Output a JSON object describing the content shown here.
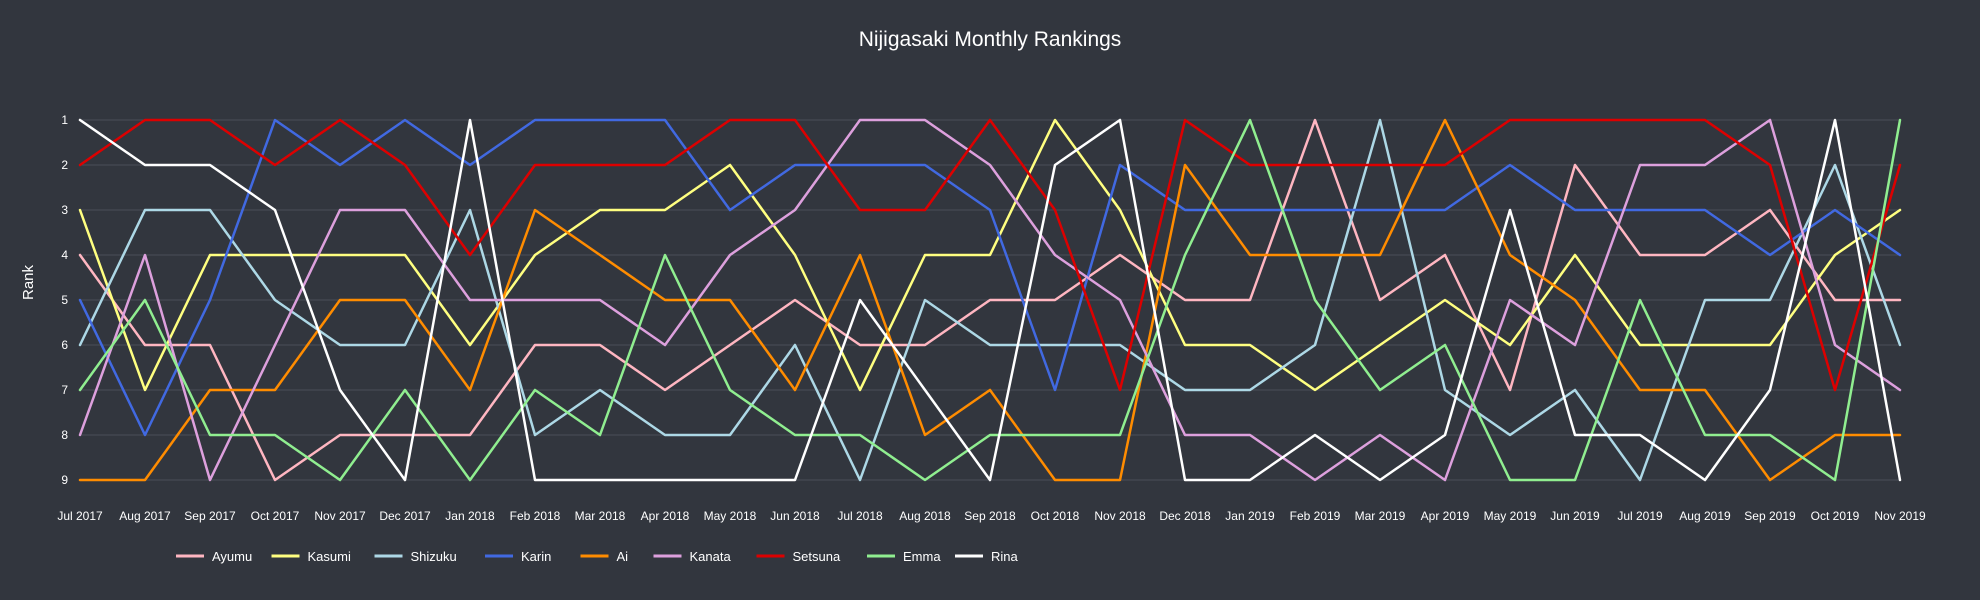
{
  "chart_data": {
    "type": "line",
    "title": "Nijigasaki Monthly Rankings",
    "xlabel": "",
    "ylabel": "Rank",
    "ylim": [
      9,
      1
    ],
    "y_inverted": true,
    "yticks": [
      1,
      2,
      3,
      4,
      5,
      6,
      7,
      8,
      9
    ],
    "grid": true,
    "legend_position": "bottom-left",
    "categories": [
      "Jul 2017",
      "Aug 2017",
      "Sep 2017",
      "Oct 2017",
      "Nov 2017",
      "Dec 2017",
      "Jan 2018",
      "Feb 2018",
      "Mar 2018",
      "Apr 2018",
      "May 2018",
      "Jun 2018",
      "Jul 2018",
      "Aug 2018",
      "Sep 2018",
      "Oct 2018",
      "Nov 2018",
      "Dec 2018",
      "Jan 2019",
      "Feb 2019",
      "Mar 2019",
      "Apr 2019",
      "May 2019",
      "Jun 2019",
      "Jul 2019",
      "Aug 2019",
      "Sep 2019",
      "Oct 2019",
      "Nov 2019"
    ],
    "series": [
      {
        "name": "Ayumu",
        "color": "#ffb6c1",
        "values": [
          4,
          6,
          6,
          9,
          8,
          8,
          8,
          6,
          6,
          7,
          6,
          5,
          6,
          6,
          5,
          5,
          4,
          5,
          5,
          1,
          5,
          4,
          7,
          2,
          4,
          4,
          3,
          5,
          5
        ]
      },
      {
        "name": "Kasumi",
        "color": "#ffff80",
        "values": [
          3,
          7,
          4,
          4,
          4,
          4,
          6,
          4,
          3,
          3,
          2,
          4,
          7,
          4,
          4,
          1,
          3,
          6,
          6,
          7,
          6,
          5,
          6,
          4,
          6,
          6,
          6,
          4,
          3
        ]
      },
      {
        "name": "Shizuku",
        "color": "#add8e6",
        "values": [
          6,
          3,
          3,
          5,
          6,
          6,
          3,
          8,
          7,
          8,
          8,
          6,
          9,
          5,
          6,
          6,
          6,
          7,
          7,
          6,
          1,
          7,
          8,
          7,
          9,
          5,
          5,
          2,
          6
        ]
      },
      {
        "name": "Karin",
        "color": "#4169e1",
        "values": [
          5,
          8,
          5,
          1,
          2,
          1,
          2,
          1,
          1,
          1,
          3,
          2,
          2,
          2,
          3,
          7,
          2,
          3,
          3,
          3,
          3,
          3,
          2,
          3,
          3,
          3,
          4,
          3,
          4
        ]
      },
      {
        "name": "Ai",
        "color": "#ff8c00",
        "values": [
          9,
          9,
          7,
          7,
          5,
          5,
          7,
          3,
          4,
          5,
          5,
          7,
          4,
          8,
          7,
          9,
          9,
          2,
          4,
          4,
          4,
          1,
          4,
          5,
          7,
          7,
          9,
          8,
          8
        ]
      },
      {
        "name": "Kanata",
        "color": "#dda0dd",
        "values": [
          8,
          4,
          9,
          6,
          3,
          3,
          5,
          5,
          5,
          6,
          4,
          3,
          1,
          1,
          2,
          4,
          5,
          8,
          8,
          9,
          8,
          9,
          5,
          6,
          2,
          2,
          1,
          6,
          7
        ]
      },
      {
        "name": "Setsuna",
        "color": "#dd0000",
        "values": [
          2,
          1,
          1,
          2,
          1,
          2,
          4,
          2,
          2,
          2,
          1,
          1,
          3,
          3,
          1,
          3,
          7,
          1,
          2,
          2,
          2,
          2,
          1,
          1,
          1,
          1,
          2,
          7,
          2
        ]
      },
      {
        "name": "Emma",
        "color": "#90ee90",
        "values": [
          7,
          5,
          8,
          8,
          9,
          7,
          9,
          7,
          8,
          4,
          7,
          8,
          8,
          9,
          8,
          8,
          8,
          4,
          1,
          5,
          7,
          6,
          9,
          9,
          5,
          8,
          8,
          9,
          1
        ]
      },
      {
        "name": "Rina",
        "color": "#ffffff",
        "values": [
          1,
          2,
          2,
          3,
          7,
          9,
          1,
          9,
          9,
          9,
          9,
          9,
          5,
          7,
          9,
          2,
          1,
          9,
          9,
          8,
          9,
          8,
          3,
          8,
          8,
          9,
          7,
          1,
          9
        ]
      }
    ]
  }
}
